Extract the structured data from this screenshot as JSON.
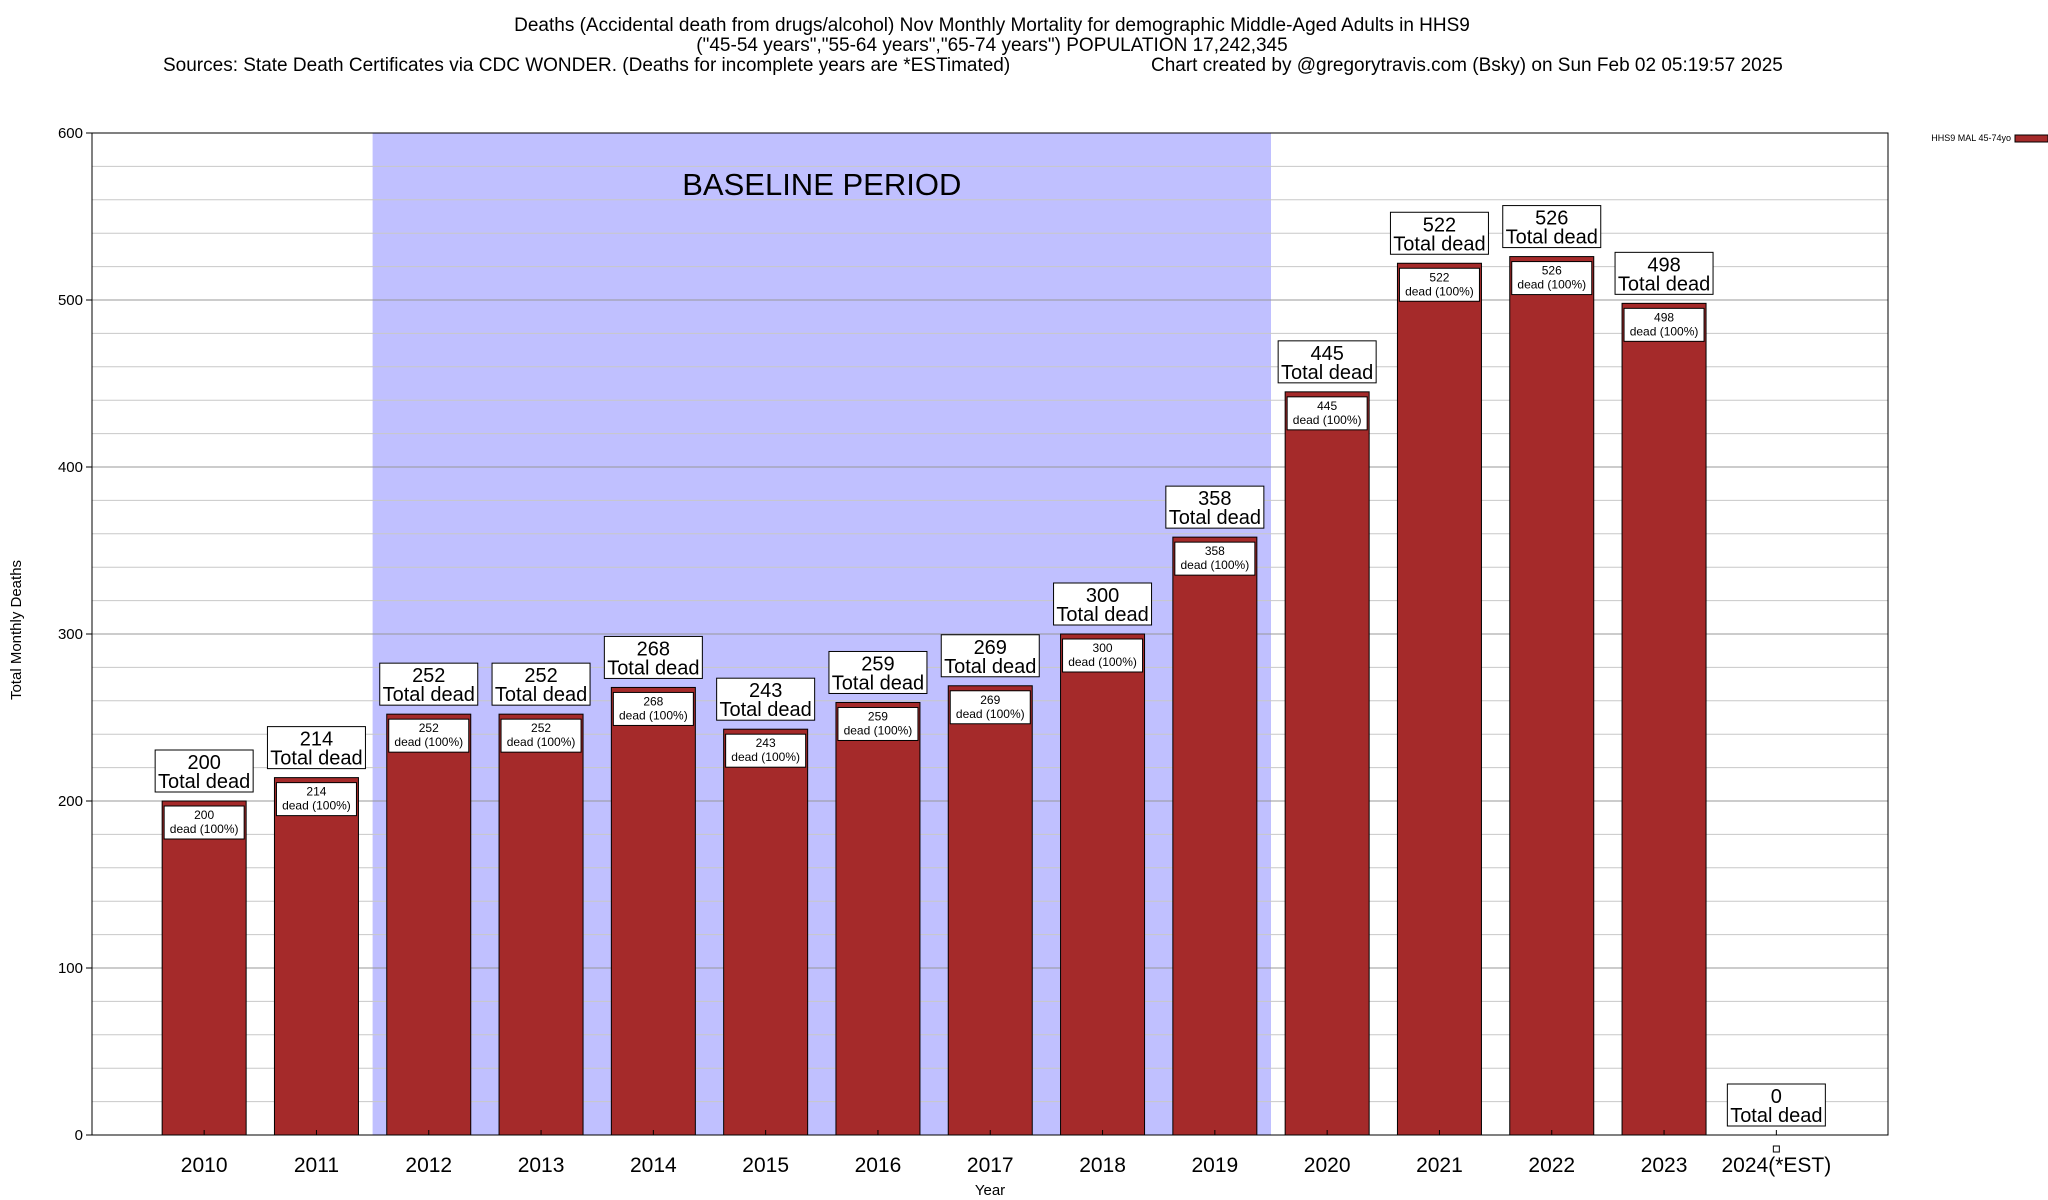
{
  "header": {
    "title_line1": "Deaths (Accidental death from drugs/alcohol) Nov Monthly Mortality for demographic Middle-Aged Adults in HHS9",
    "title_line2": "(\"45-54 years\",\"55-64 years\",\"65-74 years\") POPULATION 17,242,345",
    "sources": "Sources: State Death Certificates via CDC WONDER. (Deaths for incomplete years are *ESTimated)",
    "credit": "Chart created by @gregorytravis.com (Bsky) on Sun Feb 02 05:19:57 2025"
  },
  "chart_data": {
    "type": "bar",
    "xlabel": "Year",
    "ylabel": "Total Monthly Deaths",
    "ylim": [
      0,
      600
    ],
    "yticks": [
      0,
      100,
      200,
      300,
      400,
      500,
      600
    ],
    "grid": true,
    "legend_position": "top-right",
    "categories": [
      "2010",
      "2011",
      "2012",
      "2013",
      "2014",
      "2015",
      "2016",
      "2017",
      "2018",
      "2019",
      "2020",
      "2021",
      "2022",
      "2023",
      "2024(*EST)"
    ],
    "series": [
      {
        "name": "HHS9 MAL 45-74yo",
        "color": "#a52a2a",
        "values": [
          200,
          214,
          252,
          252,
          268,
          243,
          259,
          269,
          300,
          358,
          445,
          522,
          526,
          498,
          0
        ]
      }
    ],
    "total_label_suffix": "Total dead",
    "inner_label_suffix": "dead (100%)",
    "baseline": {
      "label": "BASELINE PERIOD",
      "from": "2012",
      "to": "2019",
      "color": "#c0c0ff"
    }
  }
}
